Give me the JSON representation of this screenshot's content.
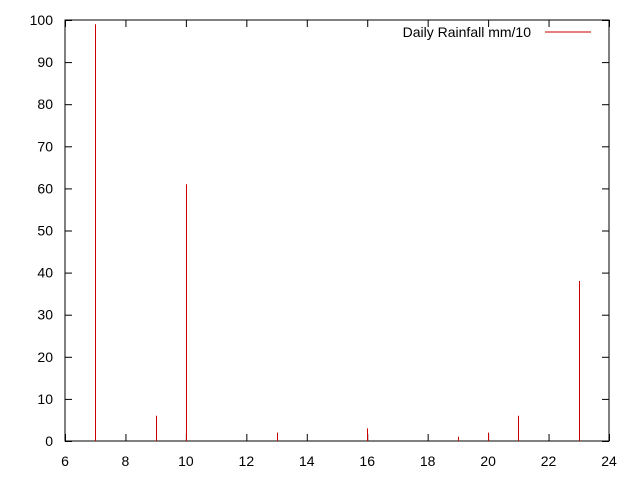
{
  "chart_data": {
    "type": "bar",
    "style": "impulses",
    "title": "",
    "xlabel": "",
    "ylabel": "",
    "xlim": [
      6,
      24
    ],
    "ylim": [
      0,
      100
    ],
    "xticks": [
      6,
      8,
      10,
      12,
      14,
      16,
      18,
      20,
      22,
      24
    ],
    "yticks": [
      0,
      10,
      20,
      30,
      40,
      50,
      60,
      70,
      80,
      90,
      100
    ],
    "grid": false,
    "legend_position": "top-right",
    "series": [
      {
        "name": "Daily Rainfall mm/10",
        "color": "#cc0000",
        "points": [
          {
            "x": 7,
            "y": 99
          },
          {
            "x": 9,
            "y": 6
          },
          {
            "x": 10,
            "y": 61
          },
          {
            "x": 13,
            "y": 2
          },
          {
            "x": 16,
            "y": 3
          },
          {
            "x": 19,
            "y": 1
          },
          {
            "x": 20,
            "y": 2
          },
          {
            "x": 21,
            "y": 6
          },
          {
            "x": 23,
            "y": 38
          }
        ]
      }
    ]
  }
}
